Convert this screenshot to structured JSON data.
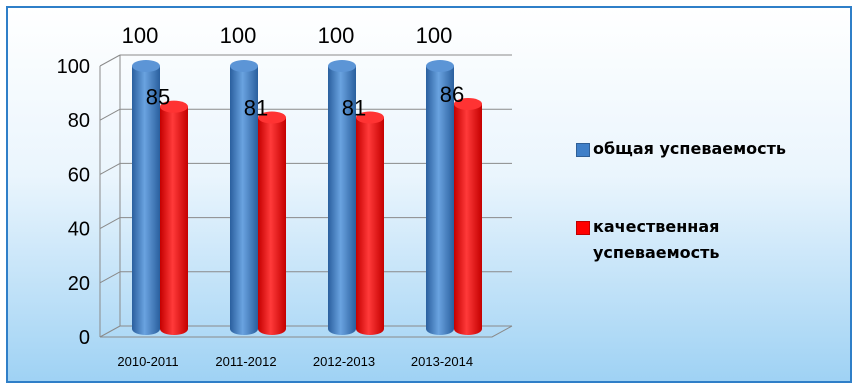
{
  "chart_data": {
    "type": "bar",
    "title": "",
    "xlabel": "",
    "ylabel": "",
    "categories": [
      "2010-2011",
      "2011-2012",
      "2012-2013",
      "2013-2014"
    ],
    "series": [
      {
        "name": "общая успеваемость",
        "values": [
          100,
          100,
          100,
          100
        ],
        "color": "#3f7fc8"
      },
      {
        "name": "качественная успеваемость",
        "values": [
          85,
          81,
          81,
          86
        ],
        "color": "#ff0000"
      }
    ],
    "ylim": [
      0,
      100
    ],
    "yticks": [
      "0",
      "20",
      "40",
      "60",
      "80",
      "100"
    ],
    "grid": true,
    "legend": "right",
    "bar_shape": "cylinder"
  }
}
